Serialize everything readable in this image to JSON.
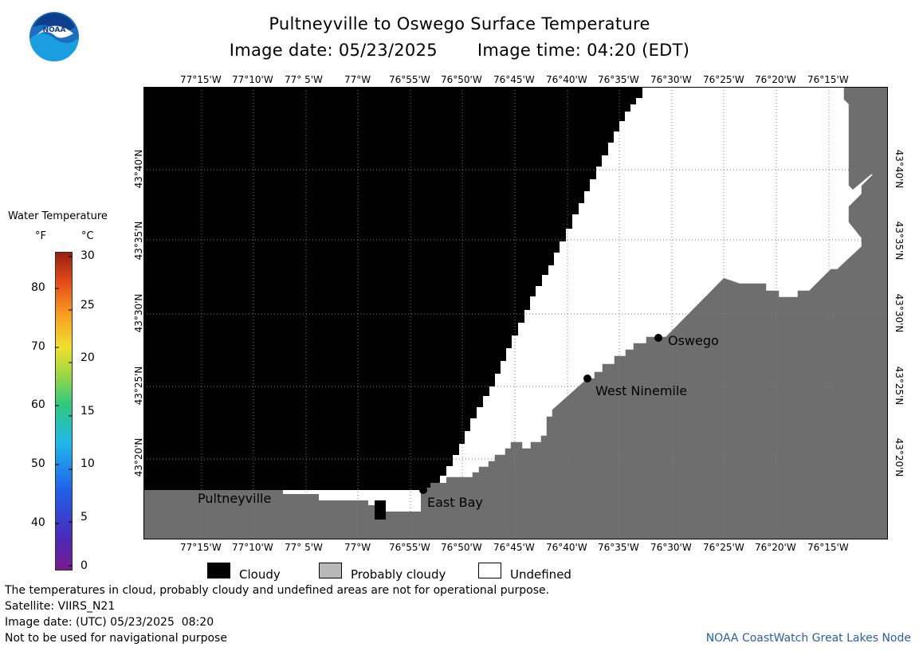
{
  "title": "Pultneyville to Oswego Surface Temperature",
  "subtitle": {
    "date_label": "Image date: 05/23/2025",
    "time_label": "Image time: 04:20 (EDT)"
  },
  "logo": {
    "text": "NOAA"
  },
  "colorbar": {
    "title": "Water Temperature",
    "unit_f": "°F",
    "unit_c": "°C",
    "f_ticks": [
      "80",
      "70",
      "60",
      "50",
      "40"
    ],
    "c_ticks": [
      "30",
      "25",
      "20",
      "15",
      "10",
      "5",
      "0"
    ]
  },
  "map": {
    "lon_ticks": [
      "77°15'W",
      "77°10'W",
      "77° 5'W",
      "77°W",
      "76°55'W",
      "76°50'W",
      "76°45'W",
      "76°40'W",
      "76°35'W",
      "76°30'W",
      "76°25'W",
      "76°20'W",
      "76°15'W"
    ],
    "lat_ticks": [
      "43°40'N",
      "43°35'N",
      "43°30'N",
      "43°25'N",
      "43°20'N"
    ],
    "places": [
      {
        "name": "Pultneyville"
      },
      {
        "name": "East Bay"
      },
      {
        "name": "West Ninemile"
      },
      {
        "name": "Oswego"
      }
    ],
    "colors": {
      "cloudy": "#000000",
      "land": "#6e6e6e",
      "undefined": "#ffffff",
      "grid": "#7a7a7a"
    }
  },
  "legend": {
    "cloudy": "Cloudy",
    "probably_cloudy": "Probably cloudy",
    "undefined": "Undefined"
  },
  "footer": {
    "disclaimer": "The temperatures in cloud, probably cloudy and undefined areas are not for operational purpose.",
    "satellite": "Satellite: VIIRS_N21",
    "utc_date": "Image date: (UTC) 05/23/2025  08:20",
    "nav_warning": "Not to be used for navigational purpose",
    "credit": "NOAA CoastWatch Great Lakes Node"
  }
}
